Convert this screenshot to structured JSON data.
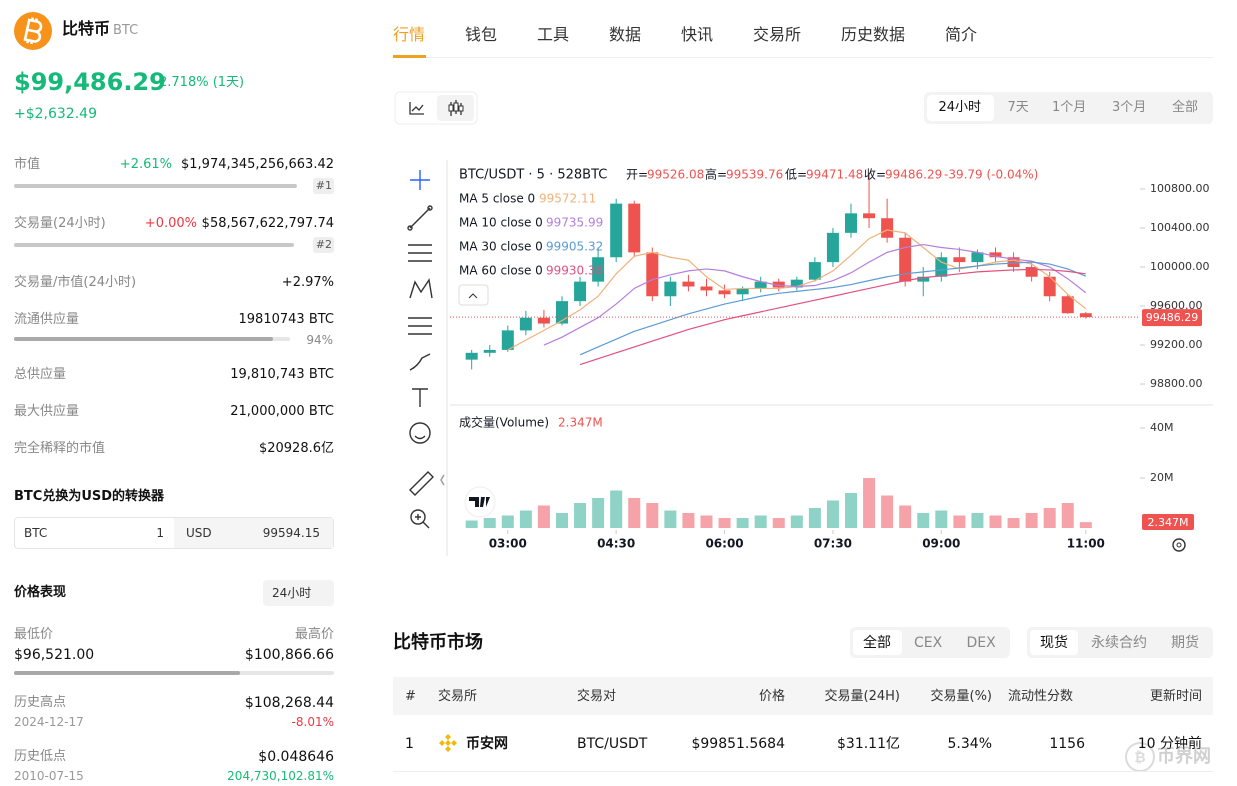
{
  "coin": {
    "name": "比特币",
    "symbol": "BTC",
    "price": "$99,486.29",
    "change_pct": "2.718% (1天)",
    "change_abs": "+$2,632.49"
  },
  "stats": {
    "market_cap": {
      "label": "市值",
      "change": "+2.61%",
      "value": "$1,974,345,256,663.42",
      "rank": "#1"
    },
    "volume": {
      "label": "交易量(24小时)",
      "change": "+0.00%",
      "value": "$58,567,622,797.74",
      "rank": "#2"
    },
    "vol_mcap": {
      "label": "交易量/市值(24小时)",
      "value": "+2.97%"
    },
    "circulating": {
      "label": "流通供应量",
      "value": "19810743 BTC",
      "ratio": {
        "value": 94,
        "label": "94%"
      }
    },
    "total": {
      "label": "总供应量",
      "value": "19,810,743 BTC"
    },
    "max": {
      "label": "最大供应量",
      "value": "21,000,000 BTC"
    },
    "fdv": {
      "label": "完全稀释的市值",
      "value": "$20928.6亿"
    }
  },
  "converter": {
    "title": "BTC兑换为USD的转换器",
    "from": "BTC",
    "amount": "1",
    "to": "USD",
    "result": "99594.15"
  },
  "performance": {
    "title": "价格表现",
    "range": "24小时",
    "low_label": "最低价",
    "low": "$96,521.00",
    "high_label": "最高价",
    "high": "$100,866.66",
    "ath_label": "历史高点",
    "ath": "$108,268.44",
    "ath_date": "2024-12-17",
    "ath_change": "-8.01%",
    "atl_label": "历史低点",
    "atl": "$0.048646",
    "atl_date": "2010-07-15",
    "atl_change": "204,730,102.81%"
  },
  "tabs": [
    "行情",
    "钱包",
    "工具",
    "数据",
    "快讯",
    "交易所",
    "历史数据",
    "简介"
  ],
  "chart_ranges": [
    "24小时",
    "7天",
    "1个月",
    "3个月",
    "全部"
  ],
  "chart_data": {
    "type": "candlestick",
    "title": "BTC/USDT · 5 · 528BTC",
    "x": [
      2.5,
      2.75,
      3,
      3.25,
      3.5,
      3.75,
      4,
      4.25,
      4.5,
      4.75,
      5,
      5.25,
      5.5,
      5.75,
      6,
      6.25,
      6.5,
      6.75,
      7,
      7.25,
      7.5,
      7.75,
      8,
      8.25,
      8.5,
      8.75,
      9,
      9.25,
      9.5,
      9.75,
      10,
      10.25,
      10.5,
      10.75,
      11
    ],
    "xlim": [
      2.2,
      11.75
    ],
    "xticks": [
      {
        "value": 3,
        "label": "03:00"
      },
      {
        "value": 4.5,
        "label": "04:30"
      },
      {
        "value": 6,
        "label": "06:00"
      },
      {
        "value": 7.5,
        "label": "07:30"
      },
      {
        "value": 9,
        "label": "09:00"
      },
      {
        "value": 11,
        "label": "11:00"
      }
    ],
    "open": [
      99050,
      99120,
      99150,
      99350,
      99480,
      99420,
      99650,
      99850,
      100100,
      100650,
      100150,
      99700,
      99850,
      99800,
      99760,
      99720,
      99780,
      99850,
      99790,
      99870,
      100050,
      100350,
      100550,
      100500,
      100300,
      99850,
      99900,
      100100,
      100050,
      100150,
      100100,
      100000,
      99900,
      99700,
      99526.08
    ],
    "high": [
      99150,
      99200,
      99400,
      99550,
      99560,
      99700,
      99900,
      100200,
      100700,
      100680,
      100200,
      99900,
      99920,
      99880,
      99820,
      99800,
      99900,
      99880,
      99900,
      100100,
      100400,
      100650,
      100960,
      100700,
      100350,
      100000,
      100150,
      100200,
      100180,
      100200,
      100150,
      100050,
      99950,
      99720,
      99539.76
    ],
    "low": [
      98950,
      99080,
      99130,
      99300,
      99380,
      99400,
      99600,
      99800,
      100050,
      100100,
      99650,
      99600,
      99750,
      99700,
      99680,
      99650,
      99740,
      99750,
      99760,
      99850,
      100000,
      100300,
      100400,
      100250,
      99800,
      99700,
      99850,
      99950,
      99980,
      100050,
      99950,
      99850,
      99650,
      99520,
      99471.48
    ],
    "close": [
      99120,
      99150,
      99350,
      99480,
      99420,
      99650,
      99850,
      100100,
      100650,
      100150,
      99700,
      99850,
      99800,
      99760,
      99720,
      99780,
      99850,
      99790,
      99870,
      100050,
      100350,
      100550,
      100500,
      100300,
      99850,
      99900,
      100100,
      100050,
      100150,
      100100,
      100000,
      99900,
      99700,
      99526,
      99486.29
    ],
    "ohlc_labels": [
      "开=",
      "高=",
      "低=",
      "收="
    ],
    "change_label": "-39.79 (-0.04%)",
    "up_color": "#26a69a",
    "down_color": "#ef5350",
    "up_volume_color": "#8fd3c6",
    "down_volume_color": "#f5a3a8",
    "ylim": [
      98585,
      101097
    ],
    "yticks": [
      {
        "value": 100800,
        "label": "100800.00"
      },
      {
        "value": 100400,
        "label": "100400.00"
      },
      {
        "value": 100000,
        "label": "100000.00"
      },
      {
        "value": 99600,
        "label": "99600.00"
      },
      {
        "value": 99200,
        "label": "99200.00"
      },
      {
        "value": 98800,
        "label": "98800.00"
      }
    ],
    "grid": false,
    "series": [
      {
        "name": "MA 5 close 0",
        "color": "#f0b27a",
        "values": [
          null,
          null,
          99150,
          99250,
          99350,
          99450,
          99560,
          99700,
          99930,
          100110,
          100150,
          100100,
          100070,
          99900,
          99770,
          99780,
          99780,
          99780,
          99800,
          99860,
          99960,
          100120,
          100290,
          100380,
          100350,
          100200,
          100050,
          99980,
          100010,
          100050,
          100070,
          100030,
          99900,
          99720,
          99572.11
        ]
      },
      {
        "name": "MA 10 close 0",
        "color": "#b57edc",
        "values": [
          null,
          null,
          null,
          null,
          99200,
          99280,
          99380,
          99480,
          99620,
          99780,
          99870,
          99920,
          99960,
          99980,
          99960,
          99900,
          99850,
          99810,
          99800,
          99810,
          99860,
          99940,
          100050,
          100150,
          100200,
          100230,
          100200,
          100180,
          100150,
          100110,
          100080,
          100060,
          100000,
          99880,
          99735.99
        ]
      },
      {
        "name": "MA 30 close 0",
        "color": "#5b9bd5",
        "values": [
          null,
          null,
          null,
          null,
          null,
          null,
          99100,
          99180,
          99260,
          99340,
          99400,
          99460,
          99520,
          99570,
          99620,
          99660,
          99700,
          99730,
          99750,
          99770,
          99790,
          99820,
          99860,
          99900,
          99930,
          99950,
          99970,
          99990,
          100010,
          100030,
          100040,
          100050,
          100030,
          99980,
          99905.32
        ]
      },
      {
        "name": "MA 60 close 0",
        "color": "#e05080",
        "values": [
          null,
          null,
          null,
          null,
          null,
          null,
          99000,
          99060,
          99120,
          99180,
          99240,
          99300,
          99360,
          99410,
          99460,
          99500,
          99540,
          99580,
          99620,
          99660,
          99700,
          99740,
          99780,
          99820,
          99860,
          99890,
          99910,
          99930,
          99950,
          99960,
          99970,
          99975,
          99970,
          99955,
          99930.38
        ]
      }
    ],
    "volume": {
      "title": "成交量(Volume)",
      "ylim": [
        0,
        48400000
      ],
      "yticks": [
        {
          "value": 20000000,
          "label": "20M"
        },
        {
          "value": 40000000,
          "label": "40M"
        }
      ],
      "values": [
        3000000,
        4000000,
        5000000,
        7000000,
        9000000,
        6000000,
        10000000,
        12000000,
        15000000,
        12000000,
        10000000,
        7000000,
        6000000,
        5000000,
        4000000,
        4000000,
        5000000,
        4000000,
        5000000,
        8000000,
        11000000,
        14000000,
        20000000,
        13000000,
        9000000,
        6000000,
        7000000,
        5000000,
        6000000,
        5000000,
        4000000,
        6000000,
        8000000,
        10000000,
        2347000
      ],
      "value_labels": [
        null,
        null,
        null,
        null,
        null,
        null,
        null,
        null,
        null,
        null,
        null,
        null,
        null,
        null,
        null,
        null,
        null,
        null,
        null,
        null,
        null,
        null,
        null,
        null,
        null,
        null,
        null,
        null,
        null,
        null,
        null,
        null,
        null,
        null,
        "2.347M"
      ]
    }
  },
  "market": {
    "title": "比特币市场",
    "filters": [
      "全部",
      "CEX",
      "DEX"
    ],
    "kinds": [
      "现货",
      "永续合约",
      "期货"
    ],
    "columns": [
      "#",
      "交易所",
      "交易对",
      "价格",
      "交易量(24H)",
      "交易量(%)",
      "流动性分数",
      "更新时间"
    ],
    "rows": [
      [
        "1",
        "币安网",
        "BTC/USDT",
        "$99851.5684",
        "$31.11亿",
        "5.34%",
        "1156",
        "10 分钟前"
      ]
    ]
  },
  "watermark": "币界网"
}
